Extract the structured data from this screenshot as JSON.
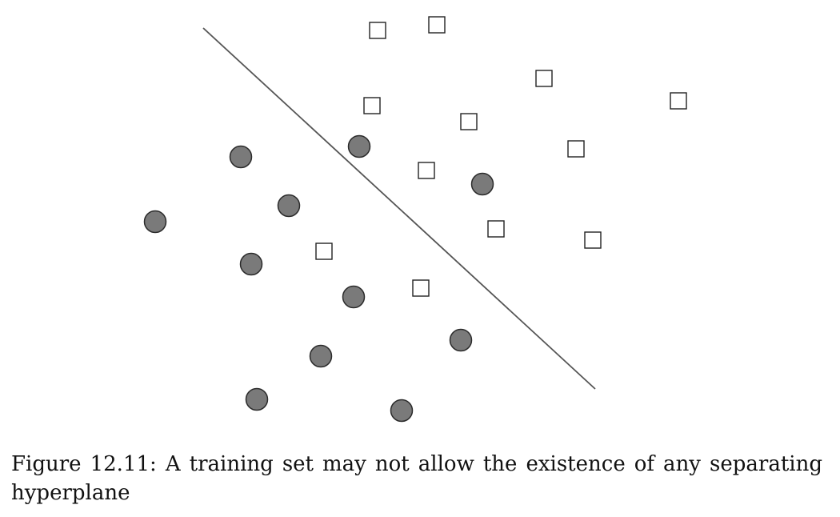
{
  "figure": {
    "caption": "Figure 12.11: A training set may not allow the existence of any separating hyperplane",
    "colors": {
      "circle_fill": "#7a7a7a",
      "circle_stroke": "#2b2b2b",
      "square_fill": "#ffffff",
      "square_stroke": "#222222",
      "line": "#555555"
    }
  }
}
